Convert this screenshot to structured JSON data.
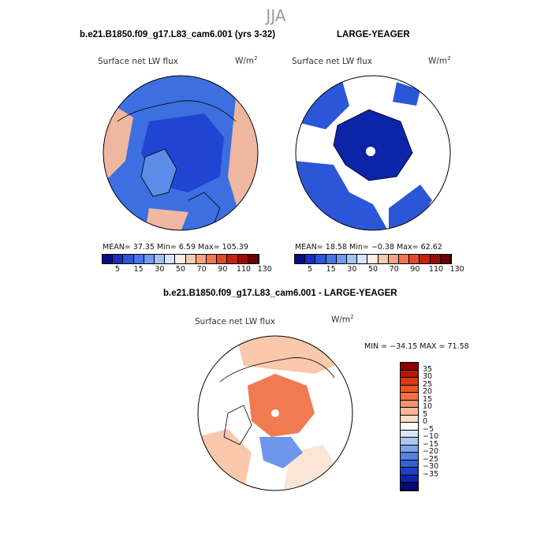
{
  "season": "JJA",
  "panels": [
    {
      "title": "b.e21.B1850.f09_g17.L83_cam6.001 (yrs 3-32)",
      "variable": "Surface net LW flux",
      "units": "W/m",
      "units_exp": "2",
      "stats": "MEAN=   37.35   Min=    6.59   Max=  105.39"
    },
    {
      "title": "LARGE-YEAGER",
      "variable": "Surface net LW flux",
      "units": "W/m",
      "units_exp": "2",
      "stats": "MEAN=   18.58   Min=   −0.38   Max=   62.62"
    },
    {
      "title": "b.e21.B1850.f09_g17.L83_cam6.001 - LARGE-YEAGER",
      "variable": "Surface net LW flux",
      "units": "W/m",
      "units_exp": "2",
      "stats": "MIN = −34.15 MAX =  71.58"
    }
  ],
  "colorbar_abs": {
    "labels": [
      "5",
      "15",
      "30",
      "50",
      "70",
      "90",
      "110",
      "130"
    ],
    "colors": [
      "#0a0a82",
      "#1a2fbe",
      "#2e55d6",
      "#4777e6",
      "#6f9cf0",
      "#a3c3f7",
      "#d4e6fb",
      "#fbeee3",
      "#f8cbb0",
      "#f4a27f",
      "#ef7652",
      "#e34a2a",
      "#c8200f",
      "#9c0a08",
      "#6e0000"
    ]
  },
  "colorbar_diff": {
    "labels": [
      "35",
      "30",
      "25",
      "20",
      "15",
      "10",
      "5",
      "0",
      "−5",
      "−10",
      "−15",
      "−20",
      "−25",
      "−30",
      "−35"
    ],
    "colors": [
      "#8c0000",
      "#b81808",
      "#d83a12",
      "#ec5420",
      "#f27040",
      "#f6936a",
      "#f9b696",
      "#fcdcc4",
      "#ffffff",
      "#d8e6f8",
      "#aac6f2",
      "#7ea4ea",
      "#5582e0",
      "#3560d6",
      "#1f40c4",
      "#0f25a8",
      "#03087a"
    ]
  },
  "map_colors": {
    "ocean_a": "#3d6fe0",
    "ice_a": "#1f45d2",
    "land_a": "#5d8ce8",
    "warm_a": "#f0b7a0",
    "ocean_b": "#2c56d8",
    "core_b": "#0c24a8",
    "land_b": "#ffffff",
    "diff_warm": "#f07a52",
    "diff_light": "#f9c8ad",
    "diff_cool": "#6e96ea"
  }
}
